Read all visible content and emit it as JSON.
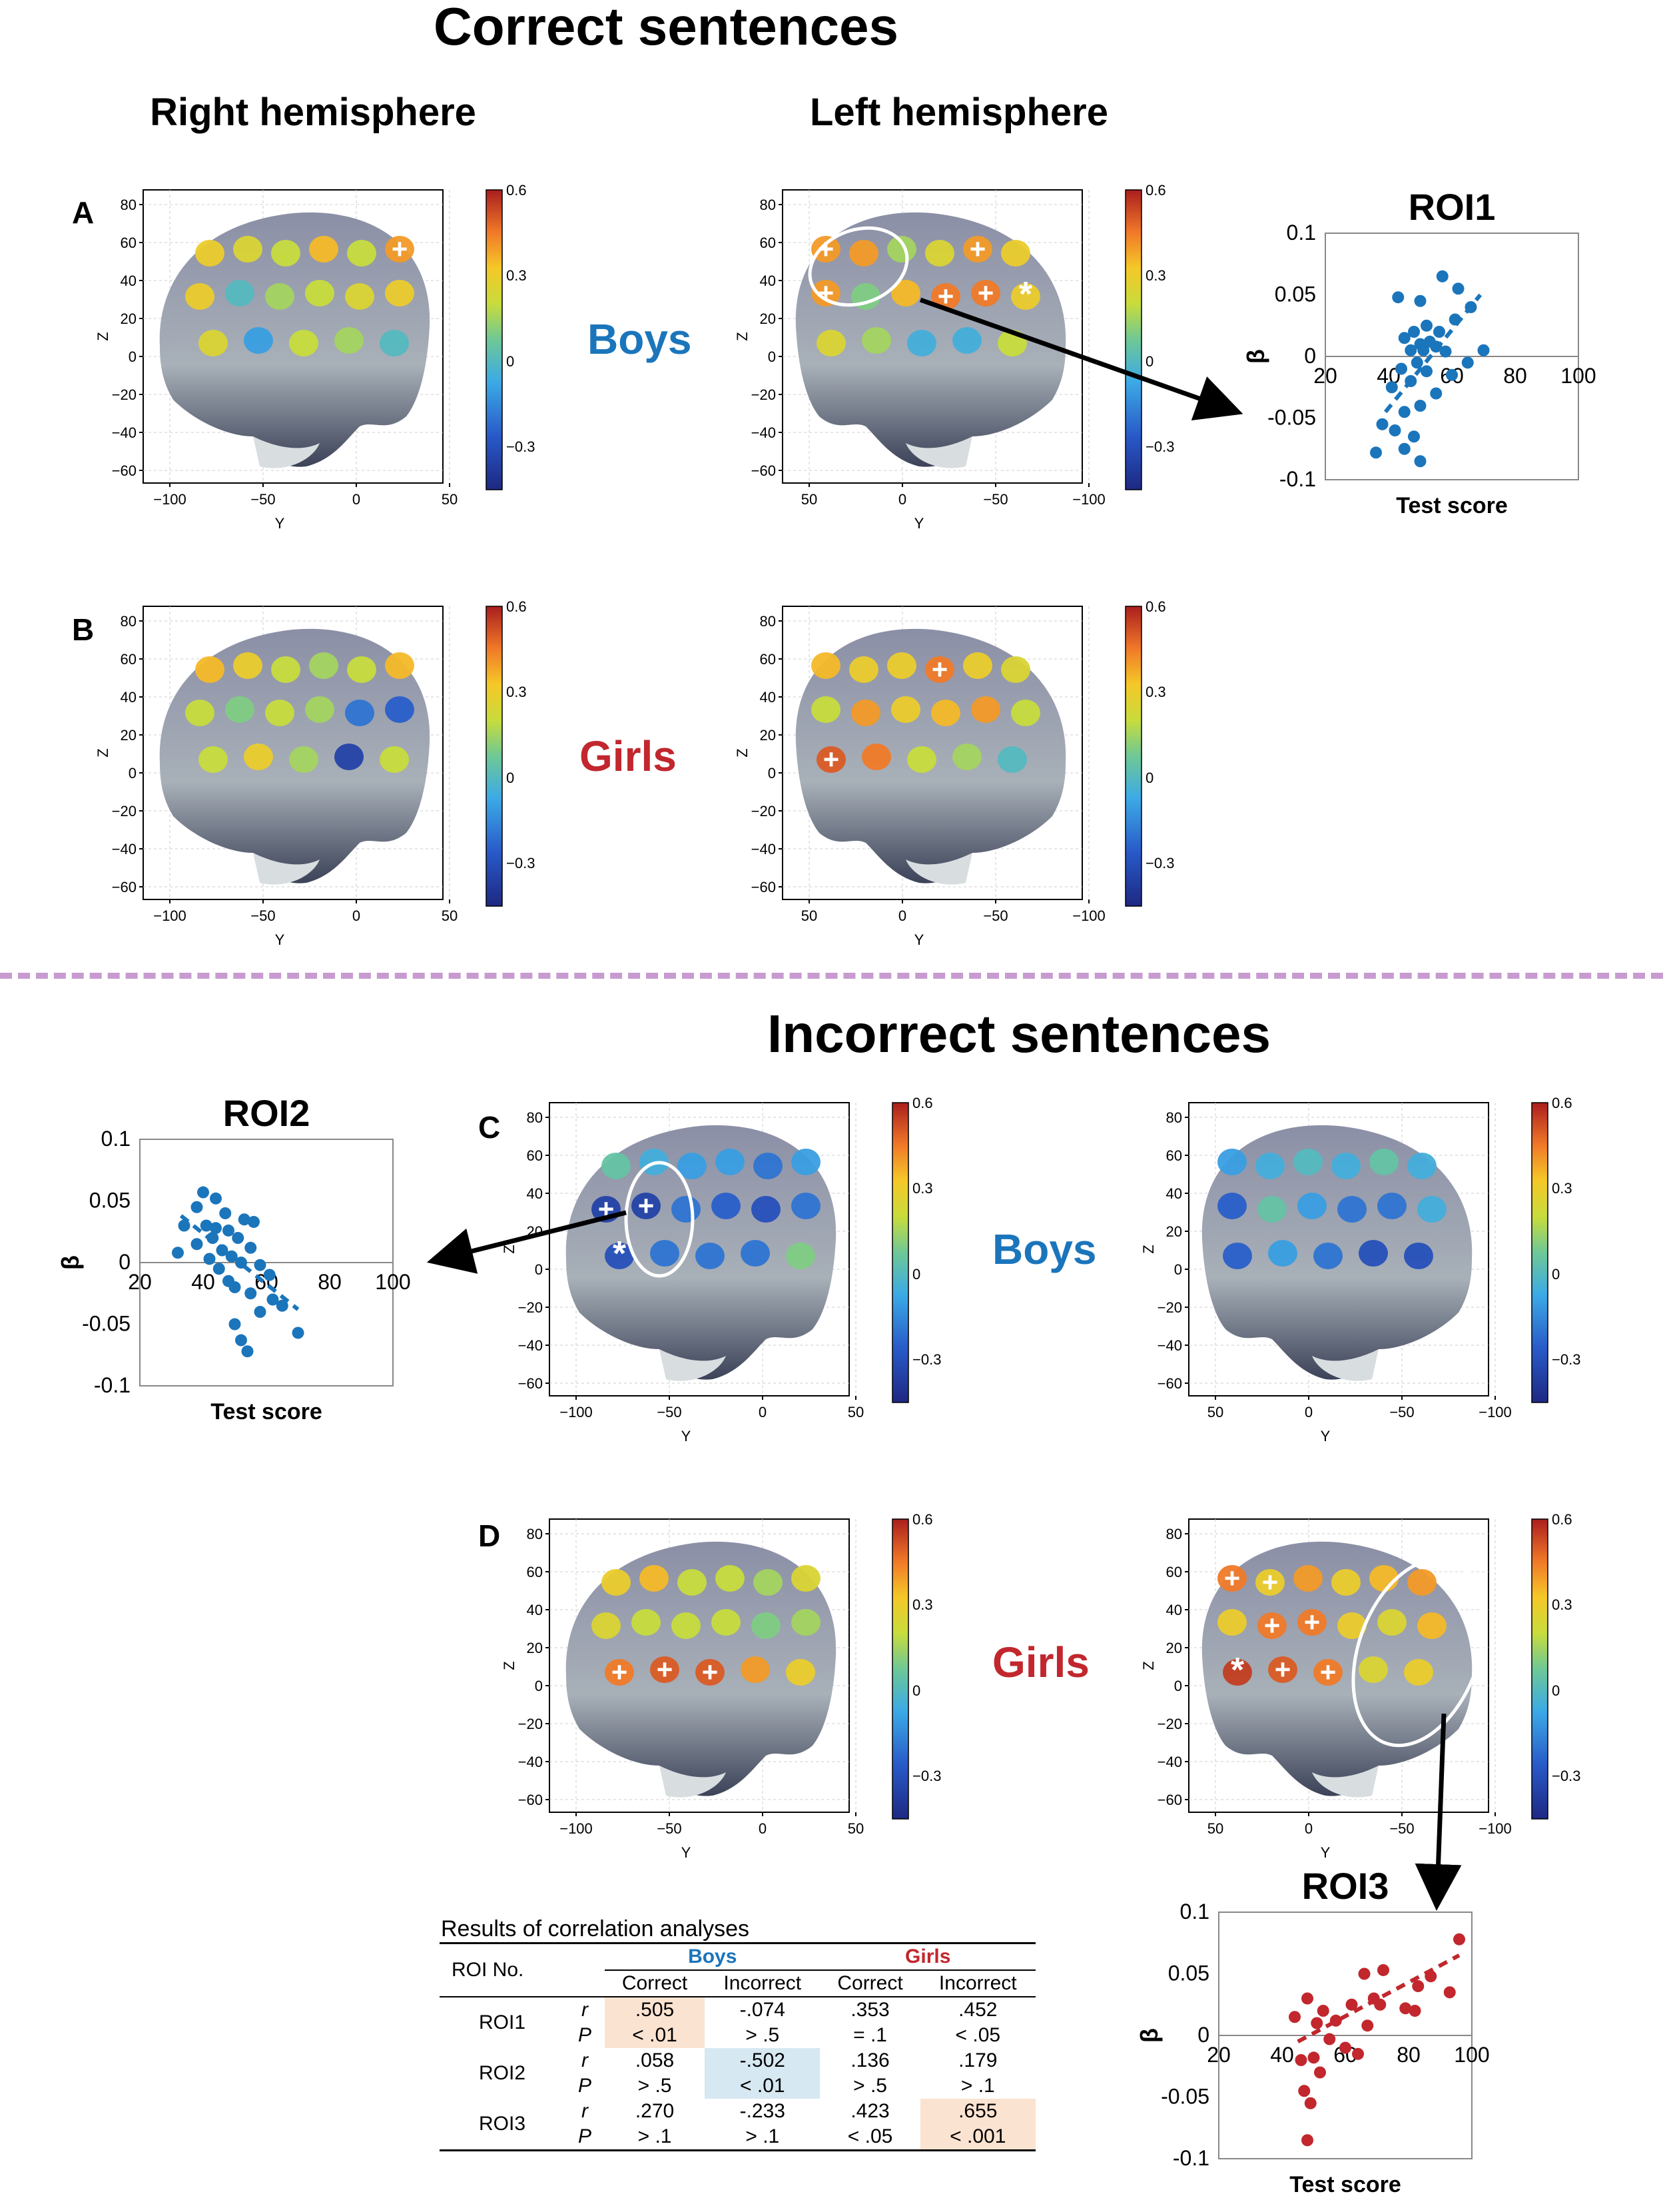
{
  "titles": {
    "correct": "Correct sentences",
    "incorrect": "Incorrect sentences",
    "right_hemisphere": "Right hemisphere",
    "left_hemisphere": "Left hemisphere"
  },
  "groups": {
    "boys": "Boys",
    "girls": "Girls"
  },
  "panel_letters": {
    "a": "A",
    "b": "B",
    "c": "C",
    "d": "D"
  },
  "colors": {
    "boys": "#1b75bb",
    "girls": "#c1272d",
    "highlight_orange": "#fbe3d1",
    "highlight_blue": "#d6e8f1",
    "separator": "#c79bd0"
  },
  "brain_axes": {
    "z_label": "Z",
    "y_label": "Y",
    "z_ticks": [
      "80",
      "60",
      "40",
      "20",
      "0",
      "−20",
      "−40",
      "−60"
    ],
    "y_ticks_right": [
      "−100",
      "−50",
      "0",
      "50"
    ],
    "y_ticks_left": [
      "50",
      "0",
      "−50",
      "−100"
    ],
    "colorbar_ticks": [
      "0.6",
      "0.3",
      "0",
      "−0.3"
    ]
  },
  "markers": {
    "plus": "+",
    "asterisk": "*"
  },
  "chart_data": [
    {
      "type": "scatter",
      "title": "ROI1",
      "xlabel": "Test score",
      "ylabel": "β",
      "xlim": [
        20,
        100
      ],
      "ylim": [
        -0.1,
        0.1
      ],
      "xticks": [
        "20",
        "40",
        "60",
        "80",
        "100"
      ],
      "yticks": [
        "0.1",
        "0.05",
        "0",
        "-0.05",
        "-0.1"
      ],
      "color": "#1b75bb",
      "points": [
        [
          43,
          0.048
        ],
        [
          50,
          0.045
        ],
        [
          57,
          0.065
        ],
        [
          62,
          0.055
        ],
        [
          66,
          0.04
        ],
        [
          61,
          0.03
        ],
        [
          56,
          0.02
        ],
        [
          52,
          0.025
        ],
        [
          48,
          0.02
        ],
        [
          45,
          0.015
        ],
        [
          50,
          0.01
        ],
        [
          53,
          0.012
        ],
        [
          47,
          0.005
        ],
        [
          51,
          0.005
        ],
        [
          55,
          0.008
        ],
        [
          58,
          0.004
        ],
        [
          70,
          0.005
        ],
        [
          49,
          -0.005
        ],
        [
          44,
          -0.01
        ],
        [
          52,
          -0.012
        ],
        [
          60,
          -0.015
        ],
        [
          47,
          -0.02
        ],
        [
          41,
          -0.025
        ],
        [
          55,
          -0.03
        ],
        [
          50,
          -0.04
        ],
        [
          45,
          -0.045
        ],
        [
          42,
          -0.06
        ],
        [
          36,
          -0.078
        ],
        [
          48,
          -0.065
        ],
        [
          45,
          -0.075
        ],
        [
          50,
          -0.085
        ],
        [
          65,
          -0.005
        ],
        [
          38,
          -0.055
        ]
      ],
      "trend": [
        [
          39,
          -0.045
        ],
        [
          69,
          0.05
        ]
      ]
    },
    {
      "type": "scatter",
      "title": "ROI2",
      "xlabel": "Test score",
      "ylabel": "β",
      "xlim": [
        20,
        100
      ],
      "ylim": [
        -0.1,
        0.1
      ],
      "xticks": [
        "20",
        "40",
        "60",
        "80",
        "100"
      ],
      "yticks": [
        "0.1",
        "0.05",
        "0",
        "-0.05",
        "-0.1"
      ],
      "color": "#1b75bb",
      "points": [
        [
          40,
          0.057
        ],
        [
          44,
          0.052
        ],
        [
          38,
          0.045
        ],
        [
          47,
          0.04
        ],
        [
          53,
          0.035
        ],
        [
          56,
          0.033
        ],
        [
          34,
          0.03
        ],
        [
          41,
          0.03
        ],
        [
          44,
          0.028
        ],
        [
          48,
          0.026
        ],
        [
          43,
          0.02
        ],
        [
          51,
          0.02
        ],
        [
          38,
          0.015
        ],
        [
          46,
          0.01
        ],
        [
          55,
          0.012
        ],
        [
          32,
          0.008
        ],
        [
          49,
          0.005
        ],
        [
          42,
          0.003
        ],
        [
          52,
          0.0
        ],
        [
          58,
          -0.002
        ],
        [
          45,
          -0.005
        ],
        [
          61,
          -0.01
        ],
        [
          48,
          -0.015
        ],
        [
          50,
          -0.02
        ],
        [
          55,
          -0.025
        ],
        [
          62,
          -0.03
        ],
        [
          65,
          -0.035
        ],
        [
          58,
          -0.04
        ],
        [
          50,
          -0.05
        ],
        [
          70,
          -0.057
        ],
        [
          52,
          -0.063
        ],
        [
          54,
          -0.072
        ]
      ],
      "trend": [
        [
          33,
          0.038
        ],
        [
          70,
          -0.038
        ]
      ]
    },
    {
      "type": "scatter",
      "title": "ROI3",
      "xlabel": "Test score",
      "ylabel": "β",
      "xlim": [
        20,
        100
      ],
      "ylim": [
        -0.1,
        0.1
      ],
      "xticks": [
        "20",
        "40",
        "60",
        "80",
        "100"
      ],
      "yticks": [
        "0.1",
        "0.05",
        "0",
        "-0.05",
        "-0.1"
      ],
      "color": "#c1272d",
      "points": [
        [
          48,
          0.03
        ],
        [
          53,
          0.02
        ],
        [
          57,
          0.012
        ],
        [
          44,
          0.015
        ],
        [
          51,
          0.01
        ],
        [
          62,
          0.025
        ],
        [
          66,
          0.05
        ],
        [
          72,
          0.053
        ],
        [
          69,
          0.03
        ],
        [
          83,
          0.04
        ],
        [
          87,
          0.048
        ],
        [
          93,
          0.035
        ],
        [
          96,
          0.078
        ],
        [
          79,
          0.022
        ],
        [
          67,
          0.008
        ],
        [
          55,
          -0.003
        ],
        [
          60,
          -0.01
        ],
        [
          64,
          -0.015
        ],
        [
          50,
          -0.018
        ],
        [
          46,
          -0.02
        ],
        [
          52,
          -0.03
        ],
        [
          47,
          -0.045
        ],
        [
          49,
          -0.055
        ],
        [
          48,
          -0.085
        ],
        [
          71,
          0.025
        ],
        [
          82,
          0.02
        ]
      ],
      "trend": [
        [
          45,
          -0.005
        ],
        [
          96,
          0.065
        ]
      ]
    }
  ],
  "results_table": {
    "caption": "Results of correlation analyses",
    "roi_header": "ROI No.",
    "group_headers": [
      "Boys",
      "Girls"
    ],
    "sub_headers": [
      "Correct",
      "Incorrect",
      "Correct",
      "Incorrect"
    ],
    "rows": [
      {
        "roi": "ROI1",
        "r": [
          ".505",
          "-.074",
          ".353",
          ".452"
        ],
        "p": [
          "< .01",
          "> .5",
          "= .1",
          "< .05"
        ]
      },
      {
        "roi": "ROI2",
        "r": [
          ".058",
          "-.502",
          ".136",
          ".179"
        ],
        "p": [
          "> .5",
          "< .01",
          "> .5",
          "> .1"
        ]
      },
      {
        "roi": "ROI3",
        "r": [
          ".270",
          "-.233",
          ".423",
          ".655"
        ],
        "p": [
          "> .1",
          "> .1",
          "< .05",
          "< .001"
        ]
      }
    ],
    "stat_labels": [
      "r",
      "P"
    ]
  }
}
